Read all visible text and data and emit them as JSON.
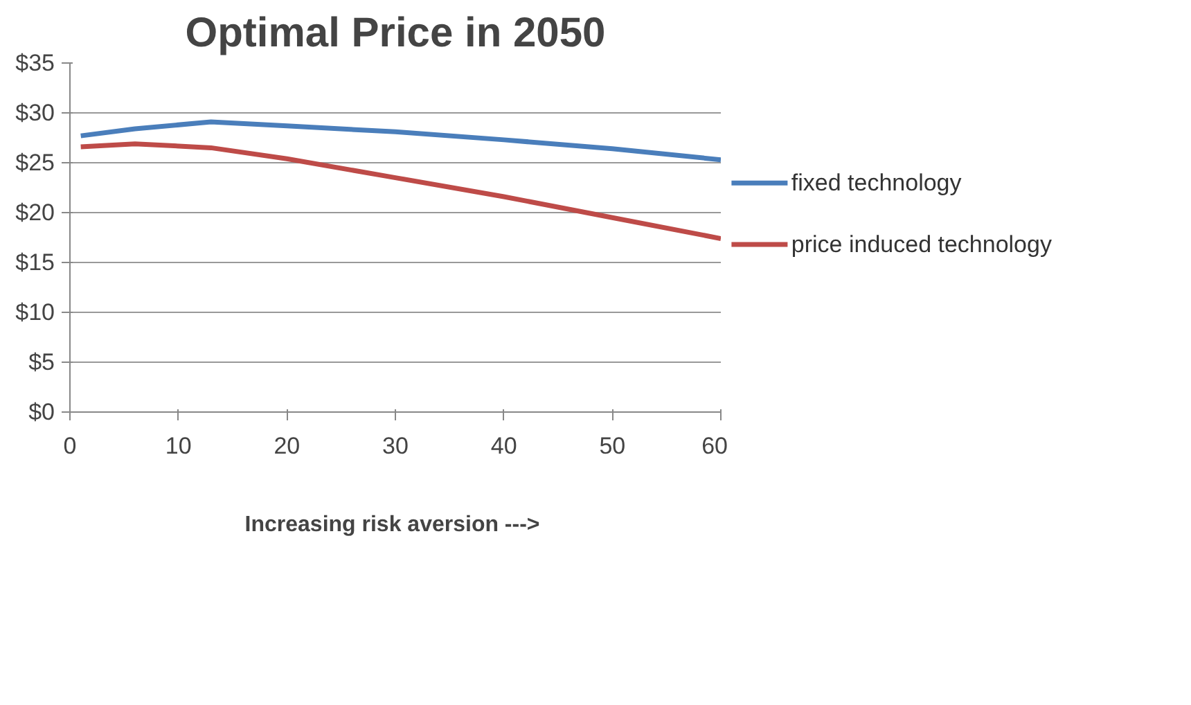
{
  "chart_data": {
    "type": "line",
    "title": "Optimal Price in 2050",
    "xlabel": "Increasing risk aversion  --->",
    "x": [
      1,
      6,
      13,
      20,
      30,
      40,
      50,
      60
    ],
    "series": [
      {
        "name": "fixed technology",
        "color": "#4a7ebb",
        "values": [
          27.7,
          28.4,
          29.1,
          28.7,
          28.1,
          27.3,
          26.4,
          25.3
        ]
      },
      {
        "name": "price induced technology",
        "color": "#be4b48",
        "values": [
          26.6,
          26.9,
          26.5,
          25.4,
          23.5,
          21.6,
          19.5,
          17.4
        ]
      }
    ],
    "xlim": [
      0,
      60
    ],
    "xticks": [
      0,
      10,
      20,
      30,
      40,
      50,
      60
    ],
    "ylim": [
      0,
      35
    ],
    "yticks": [
      {
        "value": 0,
        "label": "$0"
      },
      {
        "value": 5,
        "label": "$5"
      },
      {
        "value": 10,
        "label": "$10"
      },
      {
        "value": 15,
        "label": "$15"
      },
      {
        "value": 20,
        "label": "$20"
      },
      {
        "value": 25,
        "label": "$25"
      },
      {
        "value": 30,
        "label": "$30"
      },
      {
        "value": 35,
        "label": "$35"
      }
    ],
    "grid": "y",
    "legend": "right",
    "marker": "none",
    "line_style": "solid"
  }
}
